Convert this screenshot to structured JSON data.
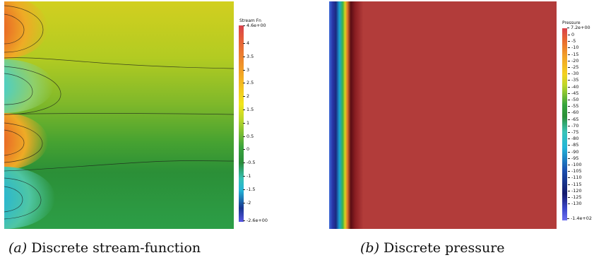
{
  "panel_a": {
    "colorbar": {
      "title": "Stream Fn",
      "max_label": "4.6e+00",
      "min_label": "-2.6e+00",
      "ticks": [
        "4",
        "3.5",
        "3",
        "2.5",
        "2",
        "1.5",
        "1",
        "0.5",
        "0",
        "-0.5",
        "-1",
        "-1.5",
        "-2"
      ]
    },
    "caption_label": "(a)",
    "caption_text": "Discrete stream-function"
  },
  "panel_b": {
    "colorbar": {
      "title": "Pressure",
      "max_label": "7.2e+00",
      "min_label": "-1.4e+02",
      "ticks": [
        "0",
        "-5",
        "-10",
        "-15",
        "-20",
        "-25",
        "-30",
        "-35",
        "-40",
        "-45",
        "-50",
        "-55",
        "-60",
        "-65",
        "-70",
        "-75",
        "-80",
        "-85",
        "-90",
        "-95",
        "-100",
        "-105",
        "-110",
        "-115",
        "-120",
        "-125",
        "-130"
      ]
    },
    "caption_label": "(b)",
    "caption_text": "Discrete pressure"
  },
  "colors": {
    "pressure_field": "#b23c3a",
    "stream_top": "#cfd21c",
    "stream_bottom": "#2c9a43"
  }
}
